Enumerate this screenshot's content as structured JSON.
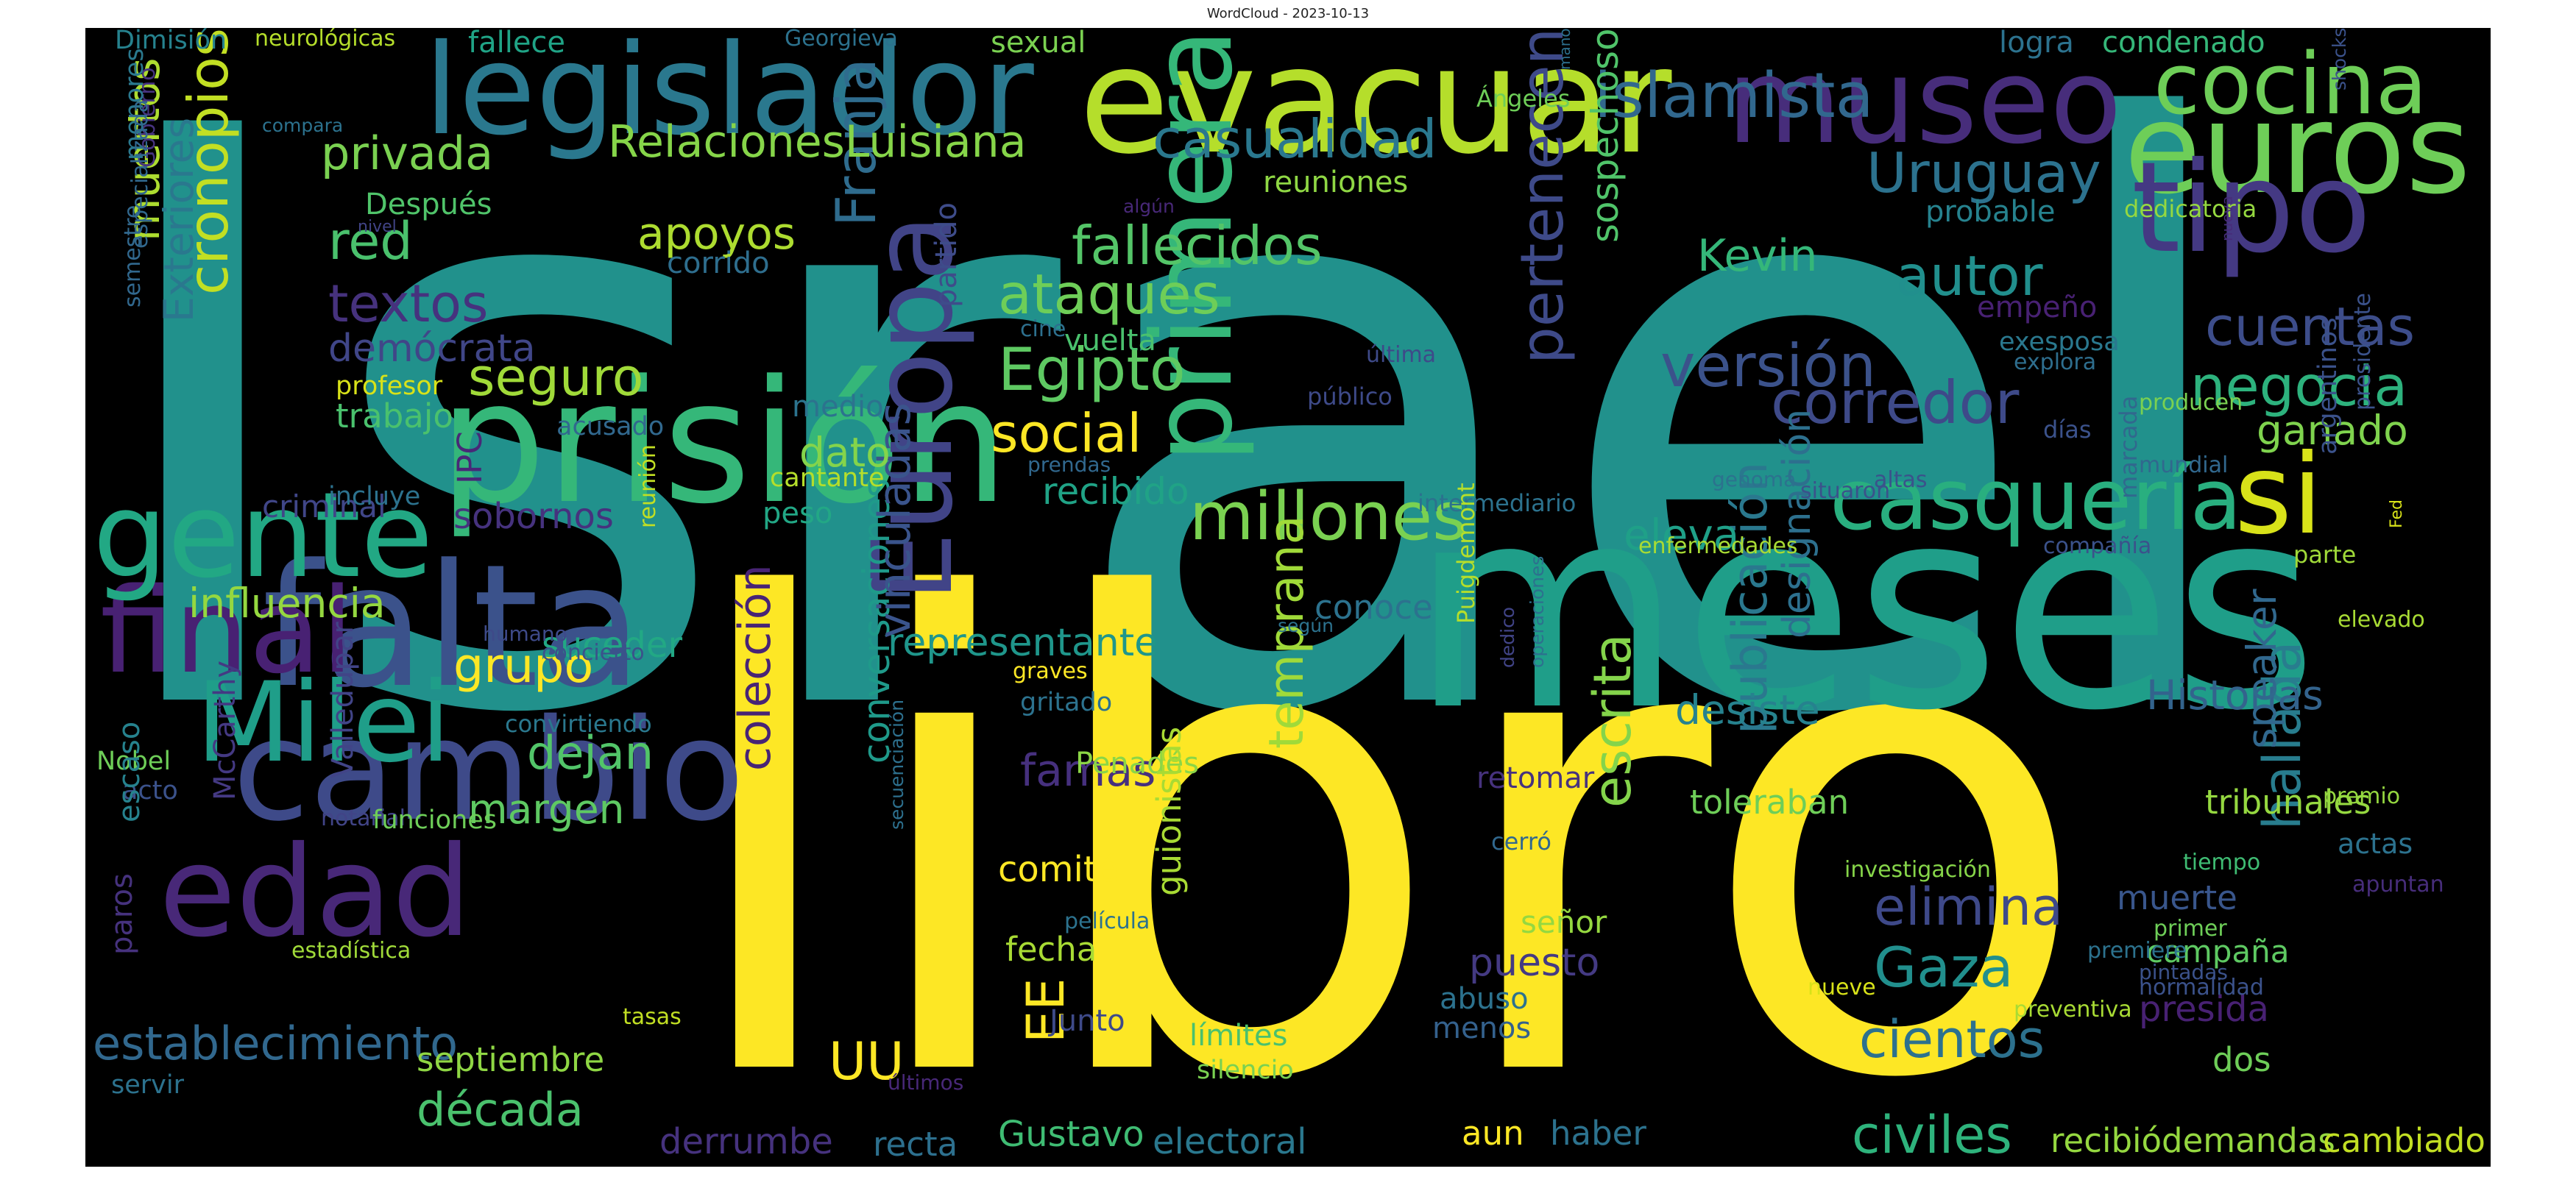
{
  "figure": {
    "title": "WordCloud - 2023-10-13"
  },
  "words": [
    {
      "text": "Israel",
      "color": "#21918c"
    },
    {
      "text": "libro",
      "color": "#fde725"
    },
    {
      "text": "meses",
      "color": "#1f9e89"
    },
    {
      "text": "evacuar",
      "color": "#b5de2b"
    },
    {
      "text": "prisión",
      "color": "#35b779"
    },
    {
      "text": "legislador",
      "color": "#2a788e"
    },
    {
      "text": "museo",
      "color": "#472d7b"
    },
    {
      "text": "euros",
      "color": "#6ece58"
    },
    {
      "text": "tipo",
      "color": "#443983"
    },
    {
      "text": "cocina",
      "color": "#6ece58"
    },
    {
      "text": "falta",
      "color": "#3b528b"
    },
    {
      "text": "cambio",
      "color": "#3e4a89"
    },
    {
      "text": "edad",
      "color": "#482878"
    },
    {
      "text": "final",
      "color": "#482173"
    },
    {
      "text": "gente",
      "color": "#22a884"
    },
    {
      "text": "Milei",
      "color": "#1f9e89"
    },
    {
      "text": "Europa",
      "color": "#414487"
    },
    {
      "text": "primera",
      "color": "#35b779"
    },
    {
      "text": "casquería",
      "color": "#29af7f"
    },
    {
      "text": "si",
      "color": "#d8e219"
    },
    {
      "text": "millones",
      "color": "#7ad151"
    },
    {
      "text": "islamista",
      "color": "#31688e"
    },
    {
      "text": "Uruguay",
      "color": "#2c728e"
    },
    {
      "text": "cronopios",
      "color": "#c2df23"
    },
    {
      "text": "muertos",
      "color": "#addc30"
    },
    {
      "text": "Exteriores",
      "color": "#2a788e"
    },
    {
      "text": "privada",
      "color": "#7ad151"
    },
    {
      "text": "red",
      "color": "#4ac16d"
    },
    {
      "text": "textos",
      "color": "#46327e"
    },
    {
      "text": "demócrata",
      "color": "#404688"
    },
    {
      "text": "seguro",
      "color": "#a0da39"
    },
    {
      "text": "Egipto",
      "color": "#5ec962"
    },
    {
      "text": "ataques",
      "color": "#6ece58"
    },
    {
      "text": "fallecidos",
      "color": "#54c568"
    },
    {
      "text": "Franja",
      "color": "#2f6c8e"
    },
    {
      "text": "apoyos",
      "color": "#addc30"
    },
    {
      "text": "social",
      "color": "#fde725"
    },
    {
      "text": "casualidad",
      "color": "#2a788e"
    },
    {
      "text": "RelacionesLuisiana",
      "color": "#86d549"
    },
    {
      "text": "versión",
      "color": "#3b528b"
    },
    {
      "text": "corredor",
      "color": "#3e4a89"
    },
    {
      "text": "autor",
      "color": "#218f8d"
    },
    {
      "text": "Kevin",
      "color": "#35b779"
    },
    {
      "text": "pertenecen",
      "color": "#3e4a89"
    },
    {
      "text": "sospechoso",
      "color": "#50c46a"
    },
    {
      "text": "negocia",
      "color": "#2db27d"
    },
    {
      "text": "cuentas",
      "color": "#3d4d8a"
    },
    {
      "text": "ganado",
      "color": "#7fd34e"
    },
    {
      "text": "grupo",
      "color": "#fde725"
    },
    {
      "text": "influencia",
      "color": "#95d840"
    },
    {
      "text": "dejan",
      "color": "#52c569"
    },
    {
      "text": "margen",
      "color": "#5ec962"
    },
    {
      "text": "establecimiento",
      "color": "#31688e"
    },
    {
      "text": "década",
      "color": "#4ac16d"
    },
    {
      "text": "septiembre",
      "color": "#8fd744"
    },
    {
      "text": "colección",
      "color": "#482475"
    },
    {
      "text": "conversaciones",
      "color": "#1f9a8a"
    },
    {
      "text": "vinculadas",
      "color": "#3a548c"
    },
    {
      "text": "famas",
      "color": "#46307e"
    },
    {
      "text": "comité",
      "color": "#fde725"
    },
    {
      "text": "EE",
      "color": "#fde725"
    },
    {
      "text": "UU",
      "color": "#fde725"
    },
    {
      "text": "fecha",
      "color": "#a8db34"
    },
    {
      "text": "temprana",
      "color": "#a0da39"
    },
    {
      "text": "representante",
      "color": "#1f968b"
    },
    {
      "text": "suceder",
      "color": "#22a884"
    },
    {
      "text": "Penadés",
      "color": "#8bd646"
    },
    {
      "text": "guionistas",
      "color": "#a8db34"
    },
    {
      "text": "Gaza",
      "color": "#218f8d"
    },
    {
      "text": "escrita",
      "color": "#84d44b"
    },
    {
      "text": "publicación",
      "color": "#2a788e"
    },
    {
      "text": "eleva",
      "color": "#1fa088"
    },
    {
      "text": "conoce",
      "color": "#2c728e"
    },
    {
      "text": "desiste",
      "color": "#26828e"
    },
    {
      "text": "designación",
      "color": "#2d708e"
    },
    {
      "text": "elimina",
      "color": "#3e4989"
    },
    {
      "text": "cientos",
      "color": "#2c718e"
    },
    {
      "text": "civiles",
      "color": "#2eb37c"
    },
    {
      "text": "hallada",
      "color": "#287d8e"
    },
    {
      "text": "Historias",
      "color": "#33638d"
    },
    {
      "text": "speaker",
      "color": "#31688e"
    },
    {
      "text": "tribunales",
      "color": "#95d840"
    },
    {
      "text": "toleraban",
      "color": "#6ece58"
    },
    {
      "text": "muerte",
      "color": "#39568c"
    },
    {
      "text": "campaña",
      "color": "#5ec962"
    },
    {
      "text": "presida",
      "color": "#482173"
    },
    {
      "text": "dos",
      "color": "#6ece58"
    },
    {
      "text": "recibiódemandas",
      "color": "#95d840"
    },
    {
      "text": "haber",
      "color": "#2c728e"
    },
    {
      "text": "cambiado",
      "color": "#c2df23"
    },
    {
      "text": "Gustavo",
      "color": "#3fbc73"
    },
    {
      "text": "electoral",
      "color": "#2a788e"
    },
    {
      "text": "derrumbe",
      "color": "#46327e"
    },
    {
      "text": "recta",
      "color": "#2d708e"
    },
    {
      "text": "aun",
      "color": "#fde725"
    },
    {
      "text": "Junto",
      "color": "#3e4a89"
    },
    {
      "text": "límites",
      "color": "#4ac16d"
    },
    {
      "text": "silencio",
      "color": "#7ad151"
    },
    {
      "text": "puesto",
      "color": "#443a83"
    },
    {
      "text": "señor",
      "color": "#95d840"
    },
    {
      "text": "abuso",
      "color": "#2c728e"
    },
    {
      "text": "menos",
      "color": "#34618d"
    },
    {
      "text": "dato",
      "color": "#84d44b"
    },
    {
      "text": "recibido",
      "color": "#20a386"
    },
    {
      "text": "medio",
      "color": "#2c738e"
    },
    {
      "text": "peso",
      "color": "#22a785"
    },
    {
      "text": "cantante",
      "color": "#b5de2b"
    },
    {
      "text": "partido",
      "color": "#3e4c8a"
    },
    {
      "text": "corrido",
      "color": "#2e6e8e"
    },
    {
      "text": "vuelta",
      "color": "#4ac16d"
    },
    {
      "text": "cine",
      "color": "#2d708e"
    },
    {
      "text": "prendas",
      "color": "#31688e"
    },
    {
      "text": "sobornos",
      "color": "#46327e"
    },
    {
      "text": "criminal",
      "color": "#404688"
    },
    {
      "text": "incluye",
      "color": "#2c728e"
    },
    {
      "text": "IPC",
      "color": "#482878"
    },
    {
      "text": "profesor",
      "color": "#d8e219"
    },
    {
      "text": "trabajo",
      "color": "#4ac16d"
    },
    {
      "text": "acusado",
      "color": "#31688e"
    },
    {
      "text": "Después",
      "color": "#50c46a"
    },
    {
      "text": "Gobierno",
      "color": "#46337f"
    },
    {
      "text": "menores",
      "color": "#2a788e"
    },
    {
      "text": "semestre",
      "color": "#31688e"
    },
    {
      "text": "especializada",
      "color": "#31688e"
    },
    {
      "text": "Dimisión",
      "color": "#26828e"
    },
    {
      "text": "neurológicas",
      "color": "#b5de2b"
    },
    {
      "text": "fallece",
      "color": "#20a486"
    },
    {
      "text": "compara",
      "color": "#2c728e"
    },
    {
      "text": "nivel",
      "color": "#414487"
    },
    {
      "text": "Georgieva",
      "color": "#2c728e"
    },
    {
      "text": "sexual",
      "color": "#7ad151"
    },
    {
      "text": "reuniones",
      "color": "#8fd744"
    },
    {
      "text": "Ángeles",
      "color": "#6ece58"
    },
    {
      "text": "mano",
      "color": "#2d708e"
    },
    {
      "text": "logra",
      "color": "#2c728e"
    },
    {
      "text": "condenado",
      "color": "#35b779"
    },
    {
      "text": "shocks",
      "color": "#3b528b"
    },
    {
      "text": "probable",
      "color": "#26828e"
    },
    {
      "text": "dedicatoria",
      "color": "#95d840"
    },
    {
      "text": "algún",
      "color": "#482878"
    },
    {
      "text": "exesposa",
      "color": "#2a788e"
    },
    {
      "text": "nueva",
      "color": "#472c7a"
    },
    {
      "text": "empeño",
      "color": "#482173"
    },
    {
      "text": "explora",
      "color": "#2e6e8e"
    },
    {
      "text": "última",
      "color": "#3e4a89"
    },
    {
      "text": "público",
      "color": "#3e4a89"
    },
    {
      "text": "días",
      "color": "#3b528b"
    },
    {
      "text": "producen",
      "color": "#7ad151"
    },
    {
      "text": "mundial",
      "color": "#31688e"
    },
    {
      "text": "presidente",
      "color": "#3b528b"
    },
    {
      "text": "argentinos",
      "color": "#3b528b"
    },
    {
      "text": "genoma",
      "color": "#2c728e"
    },
    {
      "text": "situaron",
      "color": "#3b528b"
    },
    {
      "text": "altas",
      "color": "#3b528b"
    },
    {
      "text": "intermediario",
      "color": "#2c728e"
    },
    {
      "text": "enfermedades",
      "color": "#a8db34"
    },
    {
      "text": "compañía",
      "color": "#3b528b"
    },
    {
      "text": "Fed",
      "color": "#d8e219"
    },
    {
      "text": "parte",
      "color": "#a0da39"
    },
    {
      "text": "elevado",
      "color": "#a8db34"
    },
    {
      "text": "marcada",
      "color": "#31688e"
    },
    {
      "text": "Puigdemont",
      "color": "#b5de2b"
    },
    {
      "text": "operaciones",
      "color": "#2d708e"
    },
    {
      "text": "dedico",
      "color": "#414487"
    },
    {
      "text": "retomar",
      "color": "#46327e"
    },
    {
      "text": "según",
      "color": "#2c728e"
    },
    {
      "text": "reunión",
      "color": "#c2df23"
    },
    {
      "text": "humano",
      "color": "#3e4a89"
    },
    {
      "text": "concierto",
      "color": "#3b528b"
    },
    {
      "text": "convirtiendo",
      "color": "#2a788e"
    },
    {
      "text": "graves",
      "color": "#fde725"
    },
    {
      "text": "gritado",
      "color": "#2c728e"
    },
    {
      "text": "Nobel",
      "color": "#6ece58"
    },
    {
      "text": "acto",
      "color": "#3b528b"
    },
    {
      "text": "notarial",
      "color": "#414487"
    },
    {
      "text": "funciones",
      "color": "#6ece58"
    },
    {
      "text": "McCarthy",
      "color": "#443983"
    },
    {
      "text": "escaso",
      "color": "#26828e"
    },
    {
      "text": "Valledupar",
      "color": "#414487"
    },
    {
      "text": "paros",
      "color": "#46327e"
    },
    {
      "text": "estadística",
      "color": "#a0da39"
    },
    {
      "text": "servir",
      "color": "#2c728e"
    },
    {
      "text": "tasas",
      "color": "#c2df23"
    },
    {
      "text": "últimos",
      "color": "#482878"
    },
    {
      "text": "película",
      "color": "#2c728e"
    },
    {
      "text": "secuenciación",
      "color": "#2d708e"
    },
    {
      "text": "cerró",
      "color": "#31688e"
    },
    {
      "text": "investigación",
      "color": "#86d549"
    },
    {
      "text": "tiempo",
      "color": "#3fbc73"
    },
    {
      "text": "primer",
      "color": "#6ece58"
    },
    {
      "text": "premiere",
      "color": "#2c728e"
    },
    {
      "text": "nueve",
      "color": "#d8e219"
    },
    {
      "text": "preventiva",
      "color": "#a8db34"
    },
    {
      "text": "normalidad",
      "color": "#3b528b"
    },
    {
      "text": "pintadas",
      "color": "#3b528b"
    },
    {
      "text": "premio",
      "color": "#95d840"
    },
    {
      "text": "actas",
      "color": "#2c728e"
    },
    {
      "text": "apuntan",
      "color": "#472d7b"
    }
  ]
}
